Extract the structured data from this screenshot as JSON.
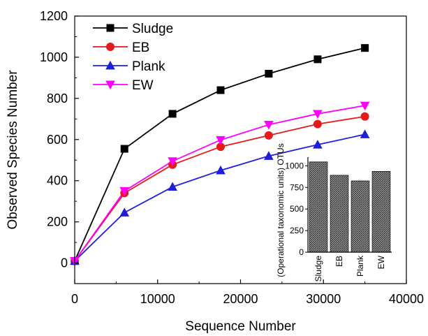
{
  "chart_data": [
    {
      "type": "line",
      "title": "",
      "xlabel": "Sequence Number",
      "ylabel": "Observed Species Number",
      "xlim": [
        0,
        40000
      ],
      "ylim": [
        -100,
        1200
      ],
      "xticks": [
        0,
        10000,
        20000,
        30000,
        40000
      ],
      "yticks": [
        0,
        200,
        400,
        600,
        800,
        1000,
        1200
      ],
      "x": [
        0,
        6000,
        11800,
        17600,
        23400,
        29300,
        35000
      ],
      "grid": false,
      "legend_position": "top-left",
      "series": [
        {
          "name": "Sludge",
          "color": "#000000",
          "marker": "square",
          "values": [
            10,
            555,
            725,
            840,
            920,
            990,
            1045
          ]
        },
        {
          "name": "EB",
          "color": "#e41a1c",
          "marker": "circle",
          "values": [
            10,
            340,
            478,
            565,
            620,
            675,
            712
          ]
        },
        {
          "name": "Plank",
          "color": "#1f1fd8",
          "marker": "triangle-up",
          "values": [
            10,
            245,
            370,
            450,
            520,
            575,
            625
          ]
        },
        {
          "name": "EW",
          "color": "#ff00ff",
          "marker": "triangle-down",
          "values": [
            10,
            350,
            495,
            598,
            672,
            725,
            765
          ]
        }
      ]
    },
    {
      "type": "bar",
      "title": "",
      "xlabel": "",
      "ylabel": "(Operational taxonomic units) OTUs",
      "categories": [
        "Sludge",
        "EB",
        "Plank",
        "EW"
      ],
      "values": [
        1045,
        890,
        825,
        935
      ],
      "ylim": [
        0,
        1100
      ],
      "yticks": [
        0,
        250,
        500,
        750,
        1000
      ],
      "bar_fill": "hatched-gray"
    }
  ]
}
